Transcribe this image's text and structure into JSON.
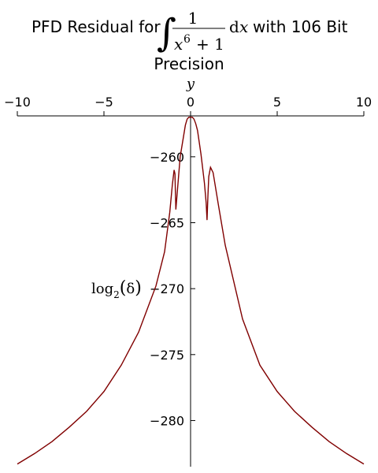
{
  "chart_data": {
    "type": "line",
    "title": {
      "prefix": "PFD Residual for",
      "integral_sign": "∫",
      "numerator": "1",
      "denominator_base": "x",
      "denominator_exp": "6",
      "denominator_rest": "+ 1",
      "differential_d": "d",
      "differential_var": "x",
      "suffix": "with 106 Bit",
      "line2": "Precision"
    },
    "xlabel": "",
    "ylabel": {
      "log": "log",
      "subscript": "2",
      "open": "(",
      "symbol": "δ",
      "close": ")"
    },
    "y_axis_name": "y",
    "xlim": [
      -10,
      10
    ],
    "ylim": [
      -283.5,
      -256.9
    ],
    "xticks": [
      -10,
      -5,
      0,
      5,
      10
    ],
    "xtick_labels": [
      "−10",
      "−5",
      "0",
      "5",
      "10"
    ],
    "yticks": [
      -260,
      -265,
      -270,
      -275,
      -280
    ],
    "ytick_labels": [
      "−260",
      "−265",
      "−270",
      "−275",
      "−280"
    ],
    "grid": false,
    "line_color": "#800000",
    "series": [
      {
        "x": [
          -10,
          -9,
          -8,
          -7,
          -6,
          -5,
          -4,
          -3,
          -2,
          -1.5,
          -1.2,
          -1.05,
          -0.95,
          -0.9,
          -0.88,
          -0.85,
          -0.8,
          -0.6,
          -0.4,
          -0.3,
          -0.2,
          -0.1,
          0,
          0.1,
          0.2,
          0.3,
          0.4,
          0.6,
          0.8,
          0.9,
          0.95,
          1.0,
          1.05,
          1.15,
          1.3,
          1.6,
          2,
          3,
          4,
          5,
          6,
          7,
          8,
          9,
          10
        ],
        "y": [
          -283.3,
          -282.5,
          -281.6,
          -280.5,
          -279.3,
          -277.8,
          -275.8,
          -273.3,
          -269.8,
          -267.2,
          -264.2,
          -262.1,
          -261.0,
          -261.3,
          -262.5,
          -264.0,
          -263.2,
          -260.0,
          -258.4,
          -257.6,
          -257.15,
          -257.0,
          -257.0,
          -257.0,
          -257.15,
          -257.5,
          -258.0,
          -259.8,
          -262.0,
          -263.5,
          -264.8,
          -263.0,
          -261.5,
          -260.8,
          -261.2,
          -263.6,
          -266.7,
          -272.3,
          -275.8,
          -277.8,
          -279.3,
          -280.5,
          -281.6,
          -282.5,
          -283.3
        ]
      }
    ]
  }
}
